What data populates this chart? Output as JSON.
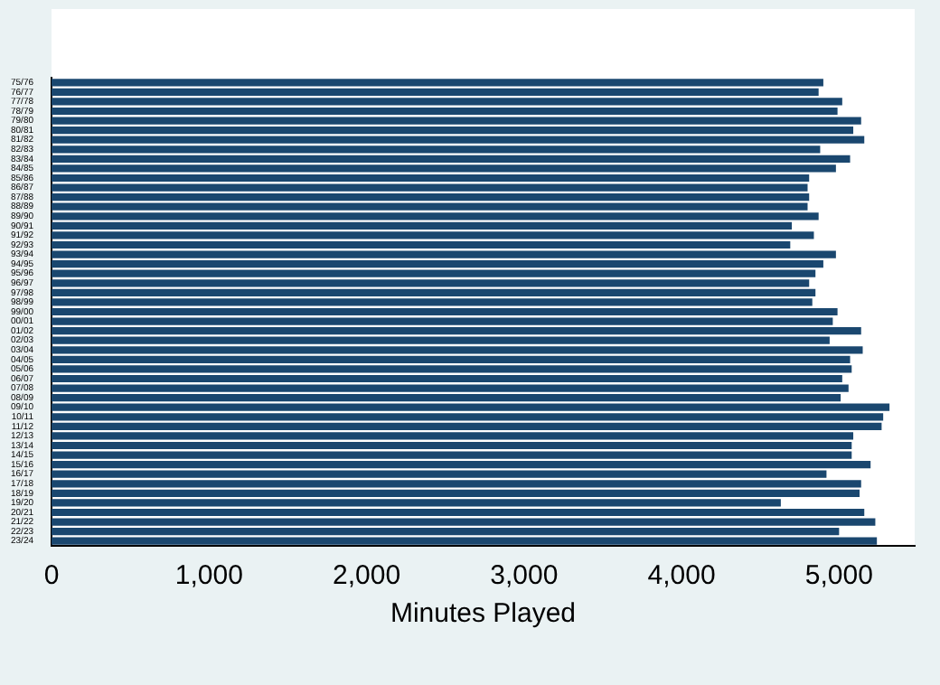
{
  "chart_data": {
    "type": "bar",
    "orientation": "horizontal",
    "xlabel": "Minutes Played",
    "categories": [
      "75/76",
      "76/77",
      "77/78",
      "78/79",
      "79/80",
      "80/81",
      "81/82",
      "82/83",
      "83/84",
      "84/85",
      "85/86",
      "86/87",
      "87/88",
      "88/89",
      "89/90",
      "90/91",
      "91/92",
      "92/93",
      "93/94",
      "94/95",
      "95/96",
      "96/97",
      "97/98",
      "98/99",
      "99/00",
      "00/01",
      "01/02",
      "02/03",
      "03/04",
      "04/05",
      "05/06",
      "06/07",
      "07/08",
      "08/09",
      "09/10",
      "10/11",
      "11/12",
      "12/13",
      "13/14",
      "14/15",
      "15/16",
      "16/17",
      "17/18",
      "18/19",
      "19/20",
      "20/21",
      "21/22",
      "22/23",
      "23/24"
    ],
    "values": [
      4900,
      4870,
      5020,
      4990,
      5140,
      5090,
      5160,
      4880,
      5070,
      4980,
      4810,
      4800,
      4810,
      4800,
      4870,
      4700,
      4840,
      4690,
      4980,
      4900,
      4850,
      4810,
      4850,
      4830,
      4990,
      4960,
      5140,
      4940,
      5150,
      5070,
      5080,
      5020,
      5060,
      5010,
      5320,
      5280,
      5270,
      5090,
      5080,
      5080,
      5200,
      4920,
      5140,
      5130,
      4630,
      5160,
      5230,
      5000,
      5240
    ],
    "color": "#1a476f",
    "xlim": [
      0,
      5480
    ],
    "xticks": [
      0,
      {
        "value": 1000,
        "label": "1,000"
      },
      {
        "value": 2000,
        "label": "2,000"
      },
      {
        "value": 3000,
        "label": "3,000"
      },
      {
        "value": 4000,
        "label": "4,000"
      },
      {
        "value": 5000,
        "label": "5,000"
      }
    ],
    "grid": false,
    "legend": false
  }
}
